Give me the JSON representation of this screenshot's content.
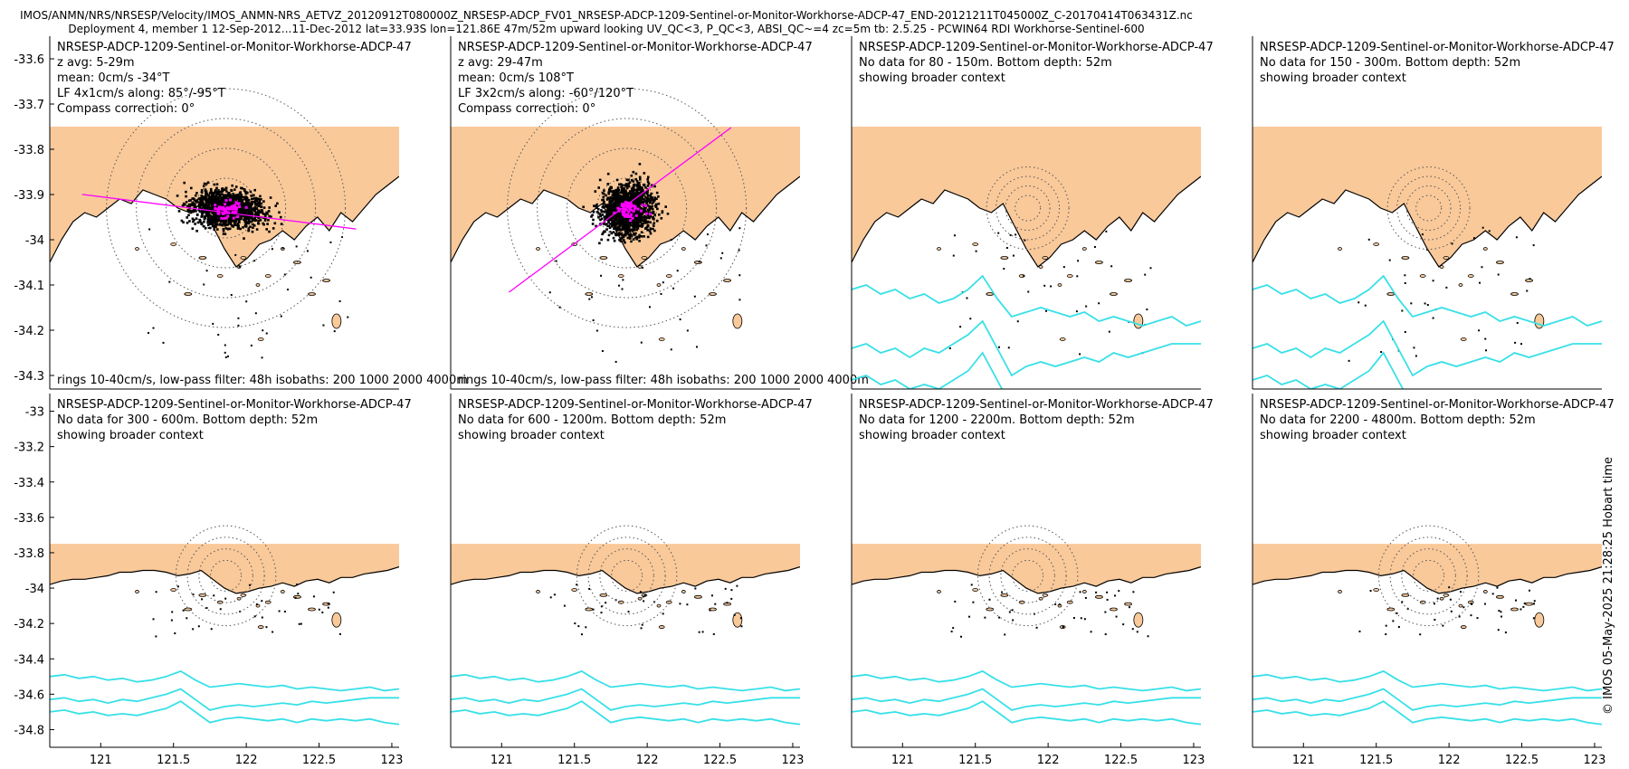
{
  "header": {
    "line1": "IMOS/ANMN/NRS/NRSESP/Velocity/IMOS_ANMN-NRS_AETVZ_20120912T080000Z_NRSESP-ADCP_FV01_NRSESP-ADCP-1209-Sentinel-or-Monitor-Workhorse-ADCP-47_END-20121211T045000Z_C-20170414T063431Z.nc",
    "line2": "Deployment 4, member 1 12-Sep-2012...11-Dec-2012 lat=33.93S lon=121.86E 47m/52m upward looking UV_QC<3, P_QC<3, ABSI_QC~=4 zc=5m tb: 2.5.25 - PCWIN64 RDI Workhorse-Sentinel-600"
  },
  "credit": "© IMOS 05-May-2025 21:28:25 Hobart time",
  "colors": {
    "land": "#f9c99a",
    "isobath": "#38e0e8",
    "axis_line": "#ff00ff",
    "points": "#000000",
    "mean_points": "#ff00ff"
  },
  "chart_data": [
    {
      "type": "scatter",
      "panel": 1,
      "lines": [
        "NRSESP-ADCP-1209-Sentinel-or-Monitor-Workhorse-ADCP-47",
        "z avg: 5-29m",
        "mean: 0cm/s -34°T",
        "LF 4x1cm/s along: 85°/-95°T",
        "Compass correction: 0°"
      ],
      "footer": "rings 10-40cm/s, low-pass filter: 48h isobaths: 200 1000 2000 4000m",
      "xlim": [
        120.65,
        123.05
      ],
      "ylim": [
        -34.33,
        -33.55
      ],
      "xticks": [],
      "yticks": [
        "-33.6",
        "-33.7",
        "-33.8",
        "-33.9",
        "-34",
        "-34.1",
        "-34.2",
        "-34.3"
      ],
      "center": [
        121.86,
        -33.93
      ],
      "axis_deg": 85,
      "grid": false
    },
    {
      "type": "scatter",
      "panel": 2,
      "lines": [
        "NRSESP-ADCP-1209-Sentinel-or-Monitor-Workhorse-ADCP-47",
        "z avg: 29-47m",
        "mean: 0cm/s 108°T",
        "LF 3x2cm/s along: -60°/120°T",
        "Compass correction: 0°"
      ],
      "footer": "rings 10-40cm/s, low-pass filter: 48h isobaths: 200 1000 2000 4000m",
      "xlim": [
        120.65,
        123.05
      ],
      "ylim": [
        -34.33,
        -33.55
      ],
      "xticks": [],
      "yticks": [],
      "center": [
        121.86,
        -33.93
      ],
      "axis_deg": 120,
      "grid": false
    },
    {
      "type": "scatter",
      "panel": 3,
      "lines": [
        "NRSESP-ADCP-1209-Sentinel-or-Monitor-Workhorse-ADCP-47",
        "No data for 80 - 150m. Bottom depth: 52m",
        "showing broader context"
      ],
      "footer": "",
      "xlim": [
        120.65,
        123.05
      ],
      "ylim": [
        -34.33,
        -33.55
      ],
      "xticks": [],
      "yticks": [],
      "center": [
        121.86,
        -33.93
      ],
      "grid": false
    },
    {
      "type": "scatter",
      "panel": 4,
      "lines": [
        "NRSESP-ADCP-1209-Sentinel-or-Monitor-Workhorse-ADCP-47",
        "No data for 150 - 300m. Bottom depth: 52m",
        "showing broader context"
      ],
      "footer": "",
      "xlim": [
        120.65,
        123.05
      ],
      "ylim": [
        -34.33,
        -33.55
      ],
      "xticks": [],
      "yticks": [],
      "center": [
        121.86,
        -33.93
      ],
      "grid": false
    },
    {
      "type": "scatter",
      "panel": 5,
      "lines": [
        "NRSESP-ADCP-1209-Sentinel-or-Monitor-Workhorse-ADCP-47",
        "No data for 300 - 600m. Bottom depth: 52m",
        "showing broader context"
      ],
      "footer": "",
      "xlim": [
        120.65,
        123.05
      ],
      "ylim": [
        -34.9,
        -32.9
      ],
      "xticks": [
        "121",
        "121.5",
        "122",
        "122.5",
        "123"
      ],
      "yticks": [
        "-33",
        "-33.2",
        "-33.4",
        "-33.6",
        "-33.8",
        "-34",
        "-34.2",
        "-34.4",
        "-34.6",
        "-34.8"
      ],
      "center": [
        121.86,
        -33.93
      ],
      "grid": false
    },
    {
      "type": "scatter",
      "panel": 6,
      "lines": [
        "NRSESP-ADCP-1209-Sentinel-or-Monitor-Workhorse-ADCP-47",
        "No data for 600 - 1200m. Bottom depth: 52m",
        "showing broader context"
      ],
      "footer": "",
      "xlim": [
        120.65,
        123.05
      ],
      "ylim": [
        -34.9,
        -32.9
      ],
      "xticks": [
        "121",
        "121.5",
        "122",
        "122.5",
        "123"
      ],
      "yticks": [],
      "center": [
        121.86,
        -33.93
      ],
      "grid": false
    },
    {
      "type": "scatter",
      "panel": 7,
      "lines": [
        "NRSESP-ADCP-1209-Sentinel-or-Monitor-Workhorse-ADCP-47",
        "No data for 1200 - 2200m. Bottom depth: 52m",
        "showing broader context"
      ],
      "footer": "",
      "xlim": [
        120.65,
        123.05
      ],
      "ylim": [
        -34.9,
        -32.9
      ],
      "xticks": [
        "121",
        "121.5",
        "122",
        "122.5",
        "123"
      ],
      "yticks": [],
      "center": [
        121.86,
        -33.93
      ],
      "grid": false
    },
    {
      "type": "scatter",
      "panel": 8,
      "lines": [
        "NRSESP-ADCP-1209-Sentinel-or-Monitor-Workhorse-ADCP-47",
        "No data for 2200 - 4800m. Bottom depth: 52m",
        "showing broader context"
      ],
      "footer": "",
      "xlim": [
        120.65,
        123.05
      ],
      "ylim": [
        -34.9,
        -32.9
      ],
      "xticks": [
        "121",
        "121.5",
        "122",
        "122.5",
        "123"
      ],
      "yticks": [],
      "center": [
        121.86,
        -33.93
      ],
      "grid": false
    }
  ]
}
